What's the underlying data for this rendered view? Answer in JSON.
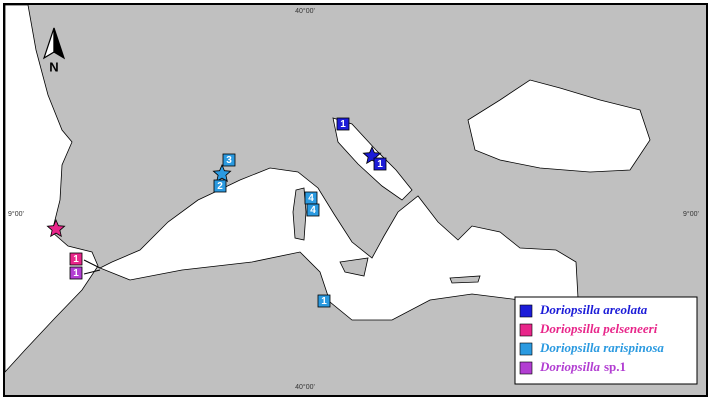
{
  "map": {
    "north_label": "N",
    "coordinate_labels": {
      "top": "40°00'",
      "left": "9°00'",
      "right": "9°00'",
      "bottom": "40°00'"
    },
    "legend": [
      {
        "name": "Doriopsilla areolata",
        "color": "#1c1cd8"
      },
      {
        "name": "Doriopsilla pelseneeri",
        "color": "#e8268a"
      },
      {
        "name": "Doriopsilla rarispinosa",
        "color": "#2b9ae0"
      },
      {
        "name": "Doriopsilla",
        "suffix": "sp.1",
        "color": "#b23ed2"
      }
    ],
    "markers": [
      {
        "label": "1",
        "species": 0
      },
      {
        "label": "1",
        "species": 0
      },
      {
        "label": "3",
        "species": 2
      },
      {
        "label": "2",
        "species": 2
      },
      {
        "label": "4",
        "species": 2
      },
      {
        "label": "4",
        "species": 2
      },
      {
        "label": "1",
        "species": 2
      },
      {
        "label": "1",
        "species": 1
      },
      {
        "label": "1",
        "species": 3
      }
    ]
  }
}
